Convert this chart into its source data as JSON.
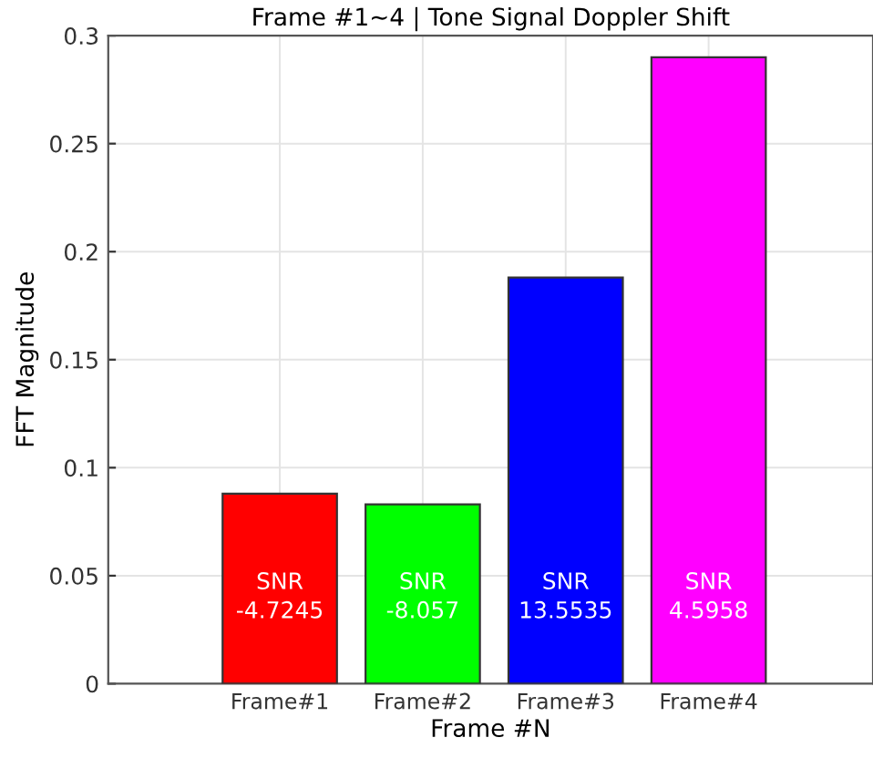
{
  "chart_data": {
    "type": "bar",
    "title": "Frame #1~4 | Tone Signal Doppler Shift",
    "xlabel": "Frame #N",
    "ylabel": "FFT Magnitude",
    "categories": [
      "Frame#1",
      "Frame#2",
      "Frame#3",
      "Frame#4"
    ],
    "values": [
      0.088,
      0.083,
      0.188,
      0.29
    ],
    "colors": [
      "#ff0000",
      "#00ff00",
      "#0000ff",
      "#ff00ff"
    ],
    "ylim": [
      0,
      0.3
    ],
    "yticks": [
      0,
      {
        "value": 0.05,
        "label": "0.05"
      },
      {
        "value": 0.1,
        "label": "0.1"
      },
      {
        "value": 0.15,
        "label": "0.15"
      },
      {
        "value": 0.2,
        "label": "0.2"
      },
      {
        "value": 0.25,
        "label": "0.25"
      },
      {
        "value": 0.3,
        "label": "0.3"
      }
    ],
    "grid": true,
    "annotations": [
      "SNR\n-4.7245",
      "SNR\n-8.057",
      "SNR\n13.5535",
      "SNR\n4.5958"
    ]
  }
}
